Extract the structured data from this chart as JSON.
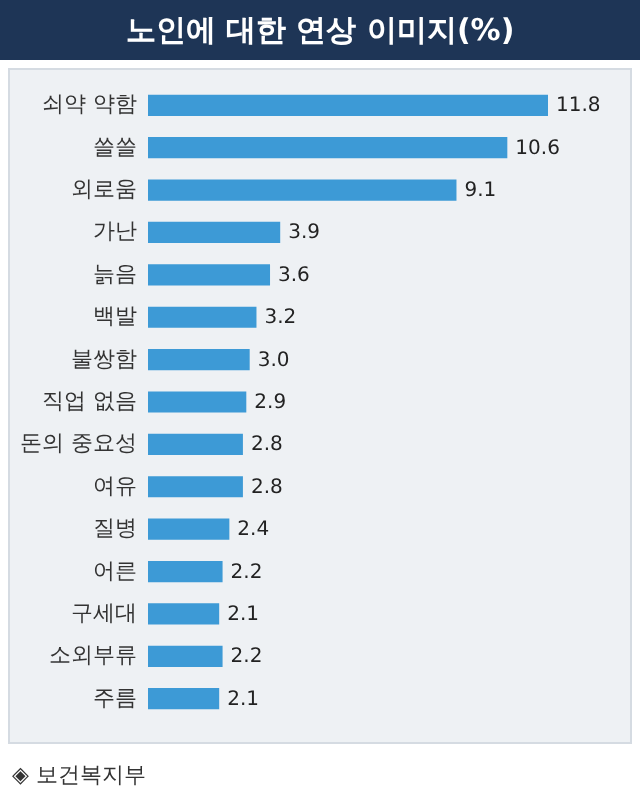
{
  "chart_data": {
    "type": "bar",
    "orientation": "horizontal",
    "title": "노인에 대한 연상 이미지(%)",
    "categories": [
      "쇠약 약함",
      "쓸쓸",
      "외로움",
      "가난",
      "늙음",
      "백발",
      "불쌍함",
      "직업 없음",
      "돈의 중요성",
      "여유",
      "질병",
      "어른",
      "구세대",
      "소외부류",
      "주름"
    ],
    "values": [
      11.8,
      10.6,
      9.1,
      3.9,
      3.6,
      3.2,
      3.0,
      2.9,
      2.8,
      2.8,
      2.4,
      2.2,
      2.1,
      2.2,
      2.1
    ],
    "value_labels": [
      "11.8",
      "10.6",
      "9.1",
      "3.9",
      "3.6",
      "3.2",
      "3.0",
      "2.9",
      "2.8",
      "2.8",
      "2.4",
      "2.2",
      "2.1",
      "2.2",
      "2.1"
    ],
    "color": "#3d9ad6",
    "annotations": [
      "◈ 보건복지부"
    ]
  }
}
